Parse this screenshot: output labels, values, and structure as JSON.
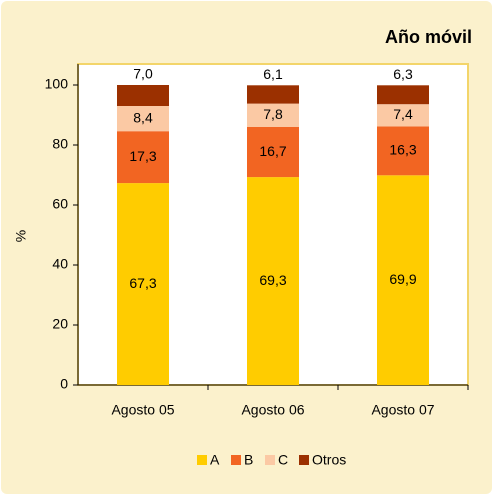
{
  "chart_data": {
    "type": "stacked_bar",
    "title": "Año móvil",
    "ylabel": "%",
    "categories": [
      "Agosto 05",
      "Agosto 06",
      "Agosto 07"
    ],
    "series": [
      {
        "name": "A",
        "color": "#ffcc00",
        "values": [
          67.3,
          69.3,
          69.9
        ],
        "value_labels": [
          "67,3",
          "69,3",
          "69,9"
        ]
      },
      {
        "name": "B",
        "color": "#f26522",
        "values": [
          17.3,
          16.7,
          16.3
        ],
        "value_labels": [
          "17,3",
          "16,7",
          "16,3"
        ]
      },
      {
        "name": "C",
        "color": "#fbc9a4",
        "values": [
          8.4,
          7.8,
          7.4
        ],
        "value_labels": [
          "8,4",
          "7,8",
          "7,4"
        ]
      },
      {
        "name": "Otros",
        "color": "#9b3000",
        "values": [
          7.0,
          6.1,
          6.3
        ],
        "value_labels": [
          "7,0",
          "6,1",
          "6,3"
        ]
      }
    ],
    "ylim": [
      0,
      100
    ],
    "yticks": [
      0,
      20,
      40,
      60,
      80,
      100
    ],
    "grid": false,
    "legend": "bottom"
  }
}
